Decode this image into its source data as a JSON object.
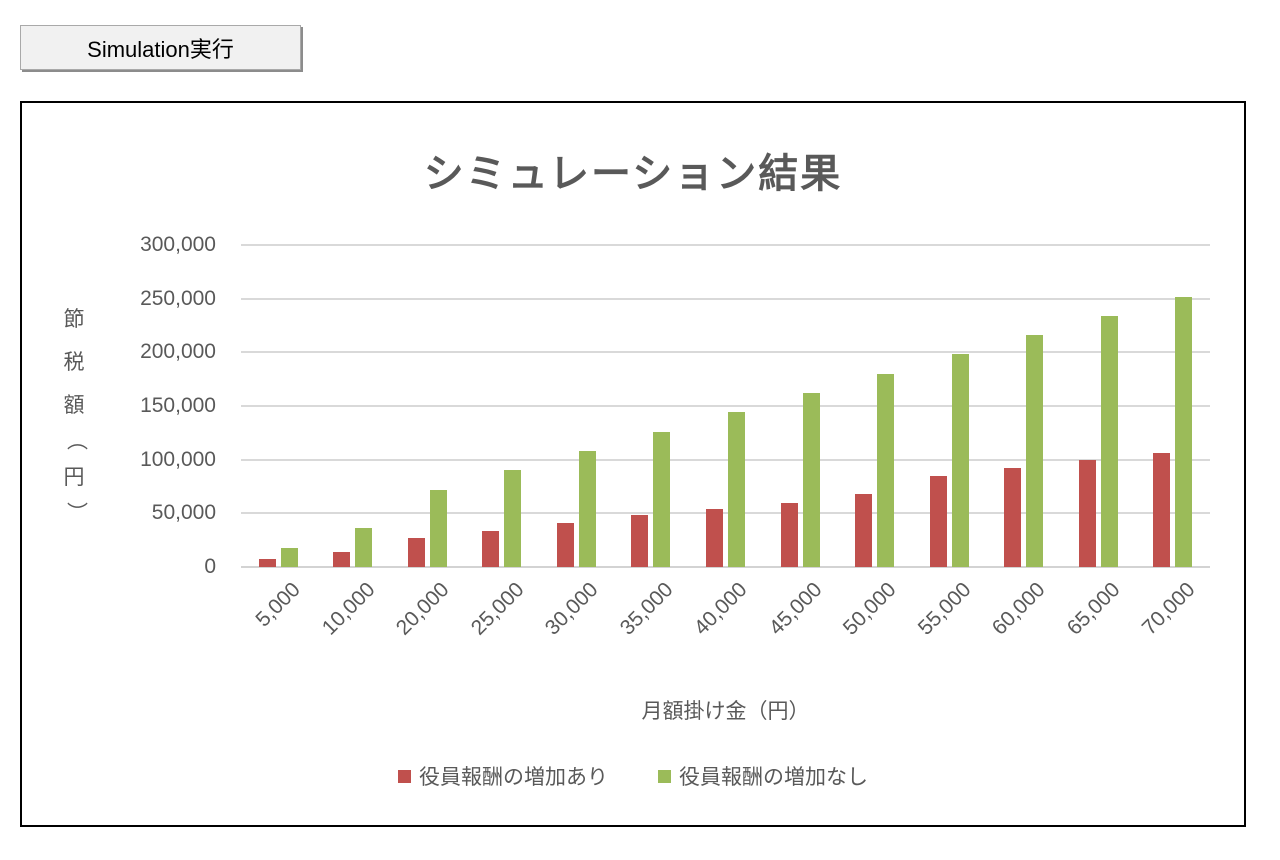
{
  "button": {
    "label": "Simulation実行"
  },
  "chart": {
    "y_axis": {
      "title": "節税額（円）",
      "title_chars": [
        "節",
        "税",
        "額",
        "（",
        "円",
        "）"
      ]
    }
  },
  "chart_data": {
    "type": "bar",
    "title": "シミュレーション結果",
    "xlabel": "月額掛け金（円）",
    "ylabel": "節税額（円）",
    "categories": [
      "5,000",
      "10,000",
      "20,000",
      "25,000",
      "30,000",
      "35,000",
      "40,000",
      "45,000",
      "50,000",
      "55,000",
      "60,000",
      "65,000",
      "70,000"
    ],
    "series": [
      {
        "name": "役員報酬の増加あり",
        "key": "with-increase",
        "color": "#C0504D",
        "values": [
          7000,
          14000,
          27000,
          34000,
          41000,
          48000,
          54000,
          60000,
          68000,
          85000,
          92000,
          100000,
          106000
        ]
      },
      {
        "name": "役員報酬の増加なし",
        "key": "without-increase",
        "color": "#9BBB59",
        "values": [
          18000,
          36000,
          72000,
          90000,
          108000,
          126000,
          144000,
          162000,
          180000,
          198000,
          216000,
          234000,
          252000
        ]
      }
    ],
    "ylim": [
      0,
      300000
    ],
    "ytick_step": 50000,
    "ytick_labels": [
      "0",
      "50,000",
      "100,000",
      "150,000",
      "200,000",
      "250,000",
      "300,000"
    ],
    "grid": true,
    "legend_position": "bottom",
    "colors": {
      "text": "#595959",
      "gridline": "#d9d9d9"
    }
  }
}
